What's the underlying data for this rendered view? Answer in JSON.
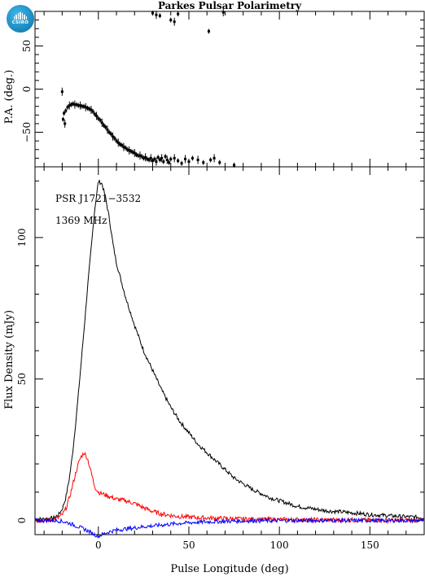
{
  "title": "Parkes Pulsar Polarimetry",
  "logo_text": "CSIRO",
  "chart_data": [
    {
      "type": "scatter",
      "panel": "position-angle",
      "ylabel": "P.A. (deg.)",
      "xlim": [
        -35,
        180
      ],
      "ylim": [
        -90,
        90
      ],
      "yticks": [
        -50,
        0,
        50
      ],
      "error_bars": true,
      "series": [
        {
          "values_source": "sampled",
          "x": [
            -20,
            -19.5,
            -19,
            -18.5,
            -18,
            -17,
            -16,
            -15,
            -14,
            -13,
            -12,
            -11,
            -10,
            -9,
            -8,
            -7,
            -6,
            -5,
            -4,
            -3,
            -2,
            -1,
            0,
            1,
            2,
            3,
            4,
            5,
            6,
            7,
            8,
            9,
            10,
            11,
            12,
            13,
            14,
            15,
            16,
            17,
            18,
            19,
            20,
            21,
            22,
            23,
            24,
            25,
            26,
            27,
            28,
            29,
            30,
            31,
            32,
            33,
            34,
            35,
            36,
            37,
            38,
            39,
            40,
            42,
            44,
            46,
            48,
            50,
            52,
            55,
            58,
            30,
            32,
            34,
            40,
            42,
            44,
            61,
            64,
            67,
            62,
            69,
            75
          ],
          "y": [
            -3,
            -35,
            -28,
            -40,
            -25,
            -21,
            -19,
            -18,
            -17,
            -18,
            -18,
            -19,
            -19,
            -20,
            -20,
            -21,
            -22,
            -23,
            -24,
            -26,
            -29,
            -31,
            -34,
            -36,
            -39,
            -42,
            -44,
            -47,
            -50,
            -52,
            -55,
            -57,
            -60,
            -62,
            -64,
            -65,
            -67,
            -68,
            -70,
            -71,
            -72,
            -73,
            -74,
            -76,
            -77,
            -77,
            -78,
            -80,
            -79,
            -81,
            -82,
            -80,
            -83,
            -81,
            -84,
            -79,
            -82,
            -80,
            -84,
            -78,
            -82,
            -85,
            -81,
            -80,
            -83,
            -86,
            -81,
            -84,
            -80,
            -82,
            -85,
            88,
            86,
            85,
            80,
            78,
            87,
            67,
            -80,
            -85,
            -82,
            89,
            -88
          ]
        }
      ]
    },
    {
      "type": "line",
      "panel": "profile",
      "xlabel": "Pulse Longitude (deg)",
      "ylabel": "Flux Density (mJy)",
      "xlim": [
        -35,
        180
      ],
      "ylim": [
        -5,
        125
      ],
      "xticks": [
        0,
        50,
        100,
        150
      ],
      "yticks": [
        0,
        50,
        100
      ],
      "annotations": [
        "PSR J1721−3532",
        "1369 MHz"
      ],
      "x": [
        -35,
        -30,
        -25,
        -22,
        -20,
        -18,
        -16,
        -14,
        -12,
        -10,
        -8,
        -6,
        -4,
        -2,
        0,
        2,
        4,
        6,
        8,
        10,
        15,
        20,
        25,
        30,
        35,
        40,
        45,
        50,
        55,
        60,
        65,
        70,
        75,
        80,
        85,
        90,
        95,
        100,
        105,
        110,
        115,
        120,
        125,
        130,
        135,
        140,
        145,
        150,
        155,
        160,
        165,
        170,
        175,
        180
      ],
      "series": [
        {
          "name": "",
          "color": "#000000",
          "values": [
            0.5,
            0.5,
            0.8,
            2,
            4,
            8,
            15,
            25,
            38,
            52,
            67,
            82,
            96,
            110,
            120,
            119,
            114,
            107,
            98,
            91,
            79,
            69,
            60,
            53,
            46,
            40,
            35,
            31,
            27,
            24,
            21,
            18,
            15,
            13,
            11,
            9.5,
            8,
            7,
            6,
            5,
            4.5,
            4,
            3.5,
            3.2,
            3,
            2.7,
            2.4,
            2.1,
            1.9,
            1.7,
            1.5,
            1.3,
            1.2,
            1
          ]
        },
        {
          "name": "",
          "color": "#ff0000",
          "values": [
            0,
            0,
            0.3,
            1,
            2,
            4,
            8,
            13,
            18,
            22,
            24,
            22,
            17,
            12,
            10,
            9.5,
            9,
            8.5,
            8,
            7.5,
            7,
            6,
            4.5,
            3.2,
            2.3,
            1.8,
            1.4,
            1.2,
            1,
            0.9,
            0.8,
            0.7,
            0.6,
            0.5,
            0.5,
            0.4,
            0.4,
            0.3,
            0.3,
            0.3,
            0.2,
            0.2,
            0.2,
            0.2,
            0.1,
            0.1,
            0.1,
            0.1,
            0.1,
            0,
            0,
            0,
            0,
            0
          ]
        },
        {
          "name": "",
          "color": "#0000ff",
          "values": [
            0,
            0,
            0,
            -0.1,
            -0.3,
            -0.6,
            -1,
            -1.5,
            -2,
            -2.5,
            -3,
            -3.6,
            -4.3,
            -5,
            -5.6,
            -5,
            -4.5,
            -4,
            -3.7,
            -3.4,
            -3,
            -2.6,
            -2.2,
            -1.9,
            -1.6,
            -1.3,
            -1,
            -0.8,
            -0.6,
            -0.5,
            -0.4,
            -0.3,
            -0.2,
            -0.2,
            -0.1,
            -0.1,
            -0.1,
            0,
            0,
            0,
            0,
            0,
            0,
            0,
            0,
            0,
            0,
            0,
            0,
            0,
            0,
            0,
            0,
            0
          ]
        }
      ]
    }
  ]
}
